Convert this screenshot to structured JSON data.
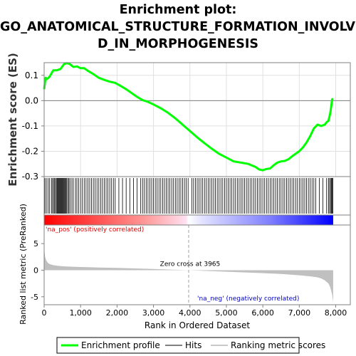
{
  "title_lines": [
    "Enrichment plot:",
    "GO_ANATOMICAL_STRUCTURE_FORMATION_INVOLVE",
    "D_IN_MORPHOGENESIS"
  ],
  "chart_data": {
    "type": "line",
    "x_axis": {
      "label": "Rank in Ordered Dataset",
      "range": [
        0,
        8400
      ],
      "ticks": [
        0,
        1000,
        2000,
        3000,
        4000,
        5000,
        6000,
        7000,
        8000
      ],
      "tick_labels": [
        "0",
        "1,000",
        "2,000",
        "3,000",
        "4,000",
        "5,000",
        "6,000",
        "7,000",
        "8,000"
      ]
    },
    "es_panel": {
      "ylabel": "Enrichment score (ES)",
      "ylim": [
        -0.3,
        0.15
      ],
      "yticks": [
        0.1,
        0.0,
        -0.1,
        -0.2,
        -0.3
      ],
      "ytick_labels": [
        "0.1",
        "0.0",
        "-0.1",
        "-0.2",
        "-0.3"
      ],
      "grid": true,
      "color": "#00ff00",
      "series_name": "Enrichment profile",
      "x": [
        0,
        40,
        80,
        150,
        250,
        350,
        450,
        550,
        620,
        700,
        800,
        900,
        1000,
        1100,
        1200,
        1350,
        1500,
        1650,
        1800,
        1950,
        2100,
        2250,
        2400,
        2550,
        2700,
        2850,
        3000,
        3200,
        3400,
        3600,
        3800,
        4000,
        4200,
        4400,
        4600,
        4800,
        5000,
        5200,
        5400,
        5600,
        5800,
        5900,
        6000,
        6100,
        6200,
        6300,
        6400,
        6500,
        6600,
        6700,
        6800,
        6900,
        7000,
        7100,
        7200,
        7300,
        7400,
        7500,
        7600,
        7700,
        7750,
        7800,
        7850,
        7880,
        7900,
        7930
      ],
      "y": [
        0.045,
        0.09,
        0.085,
        0.095,
        0.12,
        0.12,
        0.125,
        0.145,
        0.148,
        0.145,
        0.133,
        0.135,
        0.128,
        0.128,
        0.118,
        0.105,
        0.09,
        0.082,
        0.075,
        0.07,
        0.058,
        0.045,
        0.03,
        0.015,
        0.002,
        -0.005,
        -0.015,
        -0.03,
        -0.048,
        -0.07,
        -0.095,
        -0.12,
        -0.145,
        -0.168,
        -0.19,
        -0.21,
        -0.225,
        -0.24,
        -0.245,
        -0.25,
        -0.262,
        -0.272,
        -0.275,
        -0.27,
        -0.268,
        -0.255,
        -0.245,
        -0.24,
        -0.238,
        -0.232,
        -0.22,
        -0.21,
        -0.2,
        -0.185,
        -0.165,
        -0.14,
        -0.11,
        -0.095,
        -0.1,
        -0.095,
        -0.085,
        -0.08,
        -0.05,
        -0.02,
        0.005,
        0.008
      ]
    },
    "hits": [
      20,
      60,
      110,
      150,
      200,
      230,
      260,
      290,
      310,
      340,
      360,
      380,
      400,
      420,
      440,
      460,
      480,
      500,
      520,
      540,
      560,
      580,
      600,
      620,
      650,
      680,
      710,
      760,
      800,
      860,
      900,
      950,
      1000,
      1050,
      1100,
      1150,
      1200,
      1250,
      1300,
      1350,
      1400,
      1450,
      1500,
      1550,
      1600,
      1650,
      1700,
      1750,
      1800,
      1850,
      1900,
      1950,
      2050,
      2150,
      2250,
      2350,
      2450,
      2550,
      2650,
      2700,
      2750,
      2800,
      2850,
      2900,
      2950,
      3000,
      3050,
      3100,
      3150,
      3200,
      3250,
      3300,
      3350,
      3400,
      3450,
      3500,
      3550,
      3600,
      3650,
      3700,
      3750,
      3800,
      3850,
      3900,
      3950,
      4050,
      4100,
      4150,
      4200,
      4250,
      4300,
      4350,
      4400,
      4450,
      4500,
      4550,
      4600,
      4650,
      4700,
      4750,
      4800,
      4850,
      4900,
      4950,
      5000,
      5050,
      5100,
      5150,
      5200,
      5250,
      5300,
      5350,
      5400,
      5450,
      5500,
      5550,
      5600,
      5650,
      5700,
      5750,
      5800,
      5850,
      5900,
      5950,
      6000,
      6050,
      6100,
      6150,
      6200,
      6250,
      6300,
      6350,
      6400,
      6450,
      6500,
      6550,
      6600,
      6650,
      6700,
      6750,
      6800,
      6850,
      6900,
      6950,
      7000,
      7050,
      7100,
      7150,
      7200,
      7250,
      7300,
      7350,
      7400,
      7450,
      7550,
      7650,
      7750,
      7800,
      7830,
      7860,
      7880,
      7900,
      7920
    ],
    "color_bar": {
      "pos_label": "'na_pos' (positively correlated)",
      "neg_label": "'na_neg' (negatively correlated)",
      "pos_color": "#ff0000",
      "neg_color": "#0000ff"
    },
    "metric_panel": {
      "ylabel": "Ranked list metric (PreRanked)",
      "ylim": [
        -6.5,
        8.5
      ],
      "yticks": [
        5,
        0,
        -5
      ],
      "ytick_labels": [
        "5",
        "0",
        "-5"
      ],
      "zero_cross": 3965,
      "zero_cross_label": "Zero cross at 3965",
      "fill_color": "#c0c0c0",
      "x": [
        0,
        10,
        30,
        60,
        100,
        150,
        250,
        400,
        600,
        1000,
        1500,
        2000,
        2500,
        3000,
        3500,
        3965,
        4500,
        5000,
        5500,
        6000,
        6500,
        7000,
        7300,
        7500,
        7600,
        7700,
        7800,
        7850,
        7900,
        7930
      ],
      "y": [
        4.8,
        3.5,
        2.4,
        1.8,
        1.4,
        1.15,
        0.95,
        0.8,
        0.7,
        0.6,
        0.5,
        0.42,
        0.33,
        0.22,
        0.1,
        0.0,
        -0.15,
        -0.28,
        -0.42,
        -0.55,
        -0.72,
        -0.95,
        -1.15,
        -1.35,
        -1.55,
        -1.9,
        -2.5,
        -3.2,
        -4.5,
        -6.0
      ]
    },
    "legend": {
      "items": [
        "Enrichment profile",
        "Hits",
        "Ranking metric scores"
      ],
      "colors": [
        "#00ff00",
        "#808080",
        "#c8c8c8"
      ],
      "placement": "bottom"
    }
  }
}
